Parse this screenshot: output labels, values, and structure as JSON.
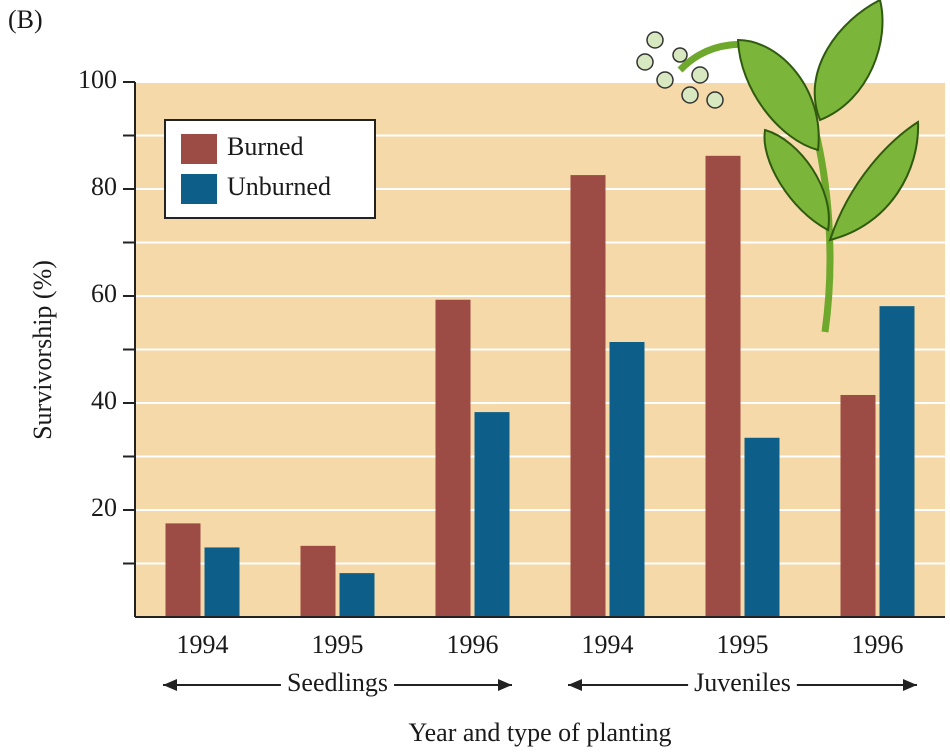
{
  "chart_data": {
    "type": "bar",
    "panel_label": "(B)",
    "y_label": "Survivorship (%)",
    "x_label": "Year and type of planting",
    "categories": [
      "1994",
      "1995",
      "1996",
      "1994",
      "1995",
      "1996"
    ],
    "groups": [
      {
        "label": "Seedlings",
        "count": 3
      },
      {
        "label": "Juveniles",
        "count": 3
      }
    ],
    "series": [
      {
        "name": "Burned",
        "color": "#9c4b45",
        "values": [
          17.5,
          13.3,
          59.3,
          82.6,
          86.2,
          41.5
        ]
      },
      {
        "name": "Unburned",
        "color": "#0d5e88",
        "values": [
          13,
          8.2,
          38.3,
          51.4,
          33.5,
          58.1
        ]
      }
    ],
    "ylim": [
      0,
      100
    ],
    "yticks": [
      20,
      40,
      60,
      80,
      100
    ],
    "minor_yticks": [
      10,
      30,
      50,
      70,
      90
    ],
    "grid": true,
    "legend": "upper left",
    "background": "#f6d9a8"
  }
}
